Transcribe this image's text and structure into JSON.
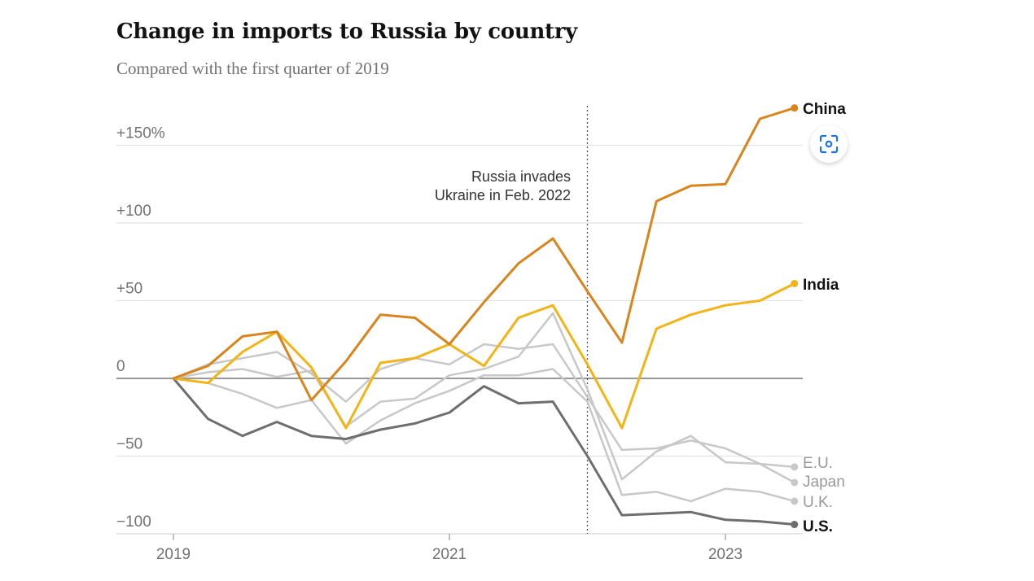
{
  "title": "Change in imports to Russia by country",
  "subtitle": "Compared with the first quarter of 2019",
  "annotation": [
    "Russia invades",
    "Ukraine in Feb. 2022"
  ],
  "scan_icon": "scan-image-icon",
  "chart_data": {
    "type": "line",
    "y_tick_labels": [
      "+150%",
      "+100",
      "+50",
      "0",
      "−50",
      "−100"
    ],
    "y_tick_values": [
      150,
      100,
      50,
      0,
      -50,
      -100
    ],
    "x_tick_labels": [
      "2019",
      "2021",
      "2023"
    ],
    "x_tick_values": [
      2019,
      2021,
      2023
    ],
    "xlim": [
      2019,
      2023.5
    ],
    "ylim": [
      -100,
      150
    ],
    "event_marker_x": 2022.0,
    "x": [
      2019.0,
      2019.25,
      2019.5,
      2019.75,
      2020.0,
      2020.25,
      2020.5,
      2020.75,
      2021.0,
      2021.25,
      2021.5,
      2021.75,
      2022.0,
      2022.25,
      2022.5,
      2022.75,
      2023.0,
      2023.25,
      2023.5
    ],
    "series": [
      {
        "name": "China",
        "color": "#d9841c",
        "width": 3,
        "label_weight": "bold",
        "values": [
          0,
          8,
          27,
          30,
          -14,
          11,
          41,
          39,
          22,
          49,
          74,
          90,
          56,
          23,
          114,
          124,
          125,
          167,
          174
        ]
      },
      {
        "name": "India",
        "color": "#f2b416",
        "width": 3,
        "label_weight": "bold",
        "values": [
          0,
          -3,
          17,
          30,
          7,
          -32,
          10,
          13,
          22,
          8,
          39,
          47,
          9,
          -32,
          32,
          41,
          47,
          50,
          61
        ]
      },
      {
        "name": "E.U.",
        "color": "#c8c8c8",
        "width": 2.5,
        "label_weight": "normal",
        "values": [
          0,
          9,
          13,
          17,
          3,
          -15,
          6,
          13,
          9,
          22,
          19,
          22,
          -12,
          -46,
          -45,
          -40,
          -45,
          -55,
          -57
        ]
      },
      {
        "name": "Japan",
        "color": "#c8c8c8",
        "width": 2.5,
        "label_weight": "normal",
        "values": [
          0,
          4,
          6,
          1,
          5,
          -31,
          -15,
          -13,
          2,
          6,
          14,
          42,
          -7,
          -65,
          -47,
          -37,
          -54,
          -55,
          -67
        ]
      },
      {
        "name": "U.K.",
        "color": "#c8c8c8",
        "width": 2.5,
        "label_weight": "normal",
        "values": [
          0,
          -3,
          -10,
          -19,
          -14,
          -42,
          -27,
          -16,
          -8,
          2,
          2,
          6,
          -15,
          -75,
          -73,
          -79,
          -71,
          -73,
          -79
        ]
      },
      {
        "name": "U.S.",
        "color": "#6e6e6e",
        "width": 3,
        "label_weight": "bold",
        "values": [
          0,
          -26,
          -37,
          -28,
          -37,
          -39,
          -33,
          -29,
          -22,
          -5,
          -16,
          -15,
          -50,
          -88,
          -87,
          -86,
          -91,
          -92,
          -94
        ]
      }
    ]
  }
}
